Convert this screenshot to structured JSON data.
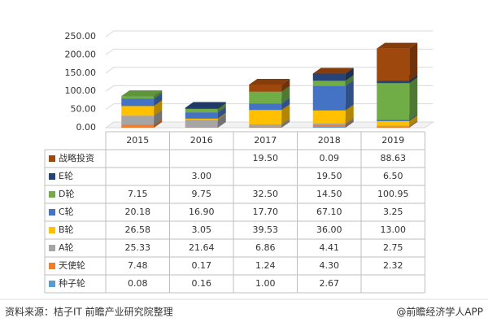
{
  "chart_data": {
    "type": "bar3d_stacked_table",
    "categories": [
      "2015",
      "2016",
      "2017",
      "2018",
      "2019"
    ],
    "ylim": [
      0,
      250
    ],
    "yticks": [
      {
        "value": 0,
        "label": "0.00"
      },
      {
        "value": 50,
        "label": "50.00"
      },
      {
        "value": 100,
        "label": "100.00"
      },
      {
        "value": 150,
        "label": "150.00"
      },
      {
        "value": 200,
        "label": "200.00"
      },
      {
        "value": 250,
        "label": "250.00"
      }
    ],
    "grid": true,
    "series": [
      {
        "name": "战略投资",
        "color": "#9e480e",
        "values": [
          null,
          null,
          19.5,
          0.09,
          88.63
        ],
        "value_labels": [
          null,
          null,
          "19.50",
          "0.09",
          "88.63"
        ]
      },
      {
        "name": "E轮",
        "color": "#264478",
        "values": [
          null,
          3.0,
          null,
          19.5,
          6.5
        ],
        "value_labels": [
          null,
          "3.00",
          null,
          "19.50",
          "6.50"
        ]
      },
      {
        "name": "D轮",
        "color": "#70ad47",
        "values": [
          7.15,
          9.75,
          32.5,
          14.5,
          100.95
        ],
        "value_labels": [
          "7.15",
          "9.75",
          "32.50",
          "14.50",
          "100.95"
        ]
      },
      {
        "name": "C轮",
        "color": "#4472c4",
        "values": [
          20.18,
          16.9,
          17.7,
          67.1,
          3.25
        ],
        "value_labels": [
          "20.18",
          "16.90",
          "17.70",
          "67.10",
          "3.25"
        ]
      },
      {
        "name": "B轮",
        "color": "#ffc000",
        "values": [
          26.58,
          3.05,
          39.53,
          36.0,
          13.0
        ],
        "value_labels": [
          "26.58",
          "3.05",
          "39.53",
          "36.00",
          "13.00"
        ]
      },
      {
        "name": "A轮",
        "color": "#a5a5a5",
        "values": [
          25.33,
          21.64,
          6.86,
          4.41,
          2.75
        ],
        "value_labels": [
          "25.33",
          "21.64",
          "6.86",
          "4.41",
          "2.75"
        ]
      },
      {
        "name": "天使轮",
        "color": "#ed7d31",
        "values": [
          7.48,
          0.17,
          1.24,
          4.3,
          2.32
        ],
        "value_labels": [
          "7.48",
          "0.17",
          "1.24",
          "4.30",
          "2.32"
        ]
      },
      {
        "name": "种子轮",
        "color": "#5b9bd5",
        "values": [
          0.08,
          0.16,
          1.0,
          2.67,
          null
        ],
        "value_labels": [
          "0.08",
          "0.16",
          "1.00",
          "2.67",
          null
        ]
      }
    ],
    "source": "资料来源：桔子IT 前瞻产业研究院整理",
    "credit": "@前瞻经济学人APP"
  }
}
